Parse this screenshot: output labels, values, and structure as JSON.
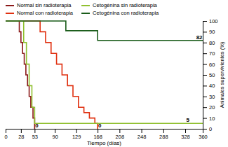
{
  "chart_data": {
    "type": "step",
    "x_label": "Tiempo (días)",
    "y_label": "Animales supervivientes (%)",
    "xlim": [
      0,
      360
    ],
    "ylim": [
      0,
      100
    ],
    "xticks": [
      0,
      28,
      53,
      90,
      129,
      168,
      208,
      248,
      288,
      328,
      360
    ],
    "yticks": [
      0,
      10,
      20,
      30,
      40,
      50,
      60,
      70,
      80,
      90,
      100
    ],
    "grid": false,
    "legend": "top",
    "series": [
      {
        "name": "Normal sin radioterapia",
        "color": "#8b1a1a",
        "x": [
          0,
          22,
          25,
          28,
          31,
          34,
          37,
          40,
          43,
          46,
          50,
          53
        ],
        "values": [
          100,
          100,
          90,
          80,
          70,
          60,
          50,
          40,
          30,
          20,
          10,
          0
        ]
      },
      {
        "name": "Normal con radioterapia",
        "color": "#e03010",
        "x": [
          0,
          53,
          63,
          73,
          83,
          93,
          103,
          113,
          123,
          133,
          143,
          153,
          163,
          168
        ],
        "values": [
          100,
          100,
          90,
          80,
          70,
          60,
          50,
          40,
          30,
          20,
          15,
          10,
          5,
          0
        ]
      },
      {
        "name": "Cetogénina sin radioterapia",
        "color": "#90c030",
        "x": [
          0,
          28,
          33,
          38,
          43,
          48,
          53,
          360
        ],
        "values": [
          100,
          100,
          80,
          60,
          40,
          20,
          5,
          5
        ]
      },
      {
        "name": "Cetogénina con radioterapia",
        "color": "#1a5c1a",
        "x": [
          0,
          90,
          110,
          129,
          168,
          360
        ],
        "values": [
          100,
          100,
          91,
          91,
          82,
          82
        ]
      }
    ],
    "annotations": [
      {
        "x": 54,
        "y": 1.5,
        "text": "0"
      },
      {
        "x": 169,
        "y": 1.5,
        "text": "0"
      },
      {
        "x": 330,
        "y": 6.5,
        "text": "5"
      },
      {
        "x": 348,
        "y": 83,
        "text": "82"
      }
    ]
  }
}
